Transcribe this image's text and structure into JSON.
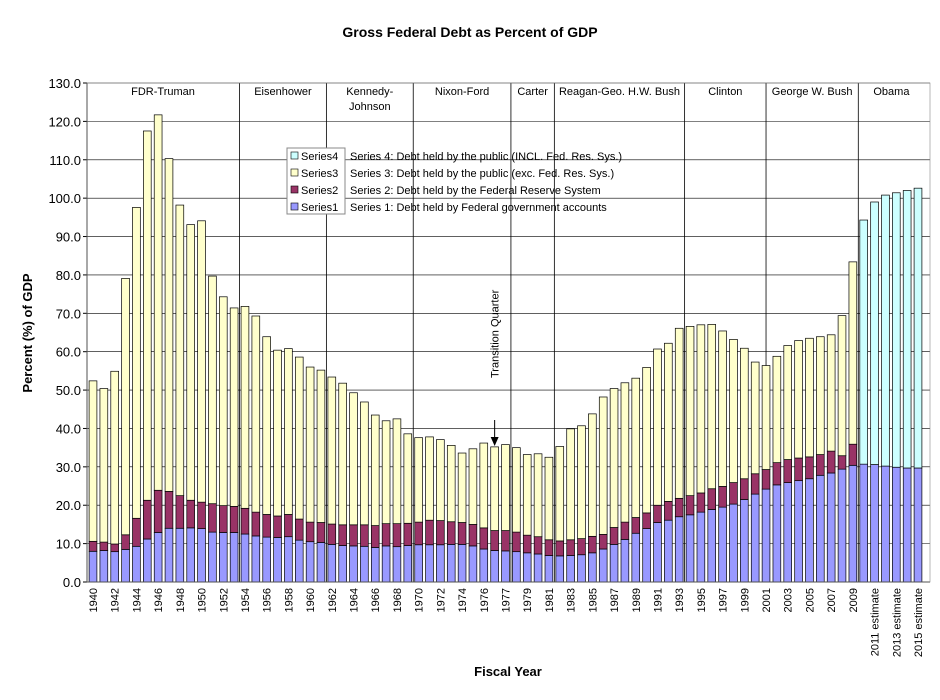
{
  "chart_data": {
    "type": "stacked-bar",
    "title": "Gross Federal Debt as Percent of GDP",
    "x_label": "Fiscal Year",
    "y_label": "Percent (%) of GDP",
    "annotation": "Transition Quarter",
    "eras": [
      [
        "FDR-Truman"
      ],
      [
        "Eisenhower"
      ],
      [
        "Kennedy-",
        "Johnson"
      ],
      [
        "Nixon-Ford"
      ],
      [
        "Carter"
      ],
      [
        "Reagan-Geo. H.W. Bush"
      ],
      [
        "Clinton"
      ],
      [
        "George W. Bush"
      ],
      [
        "Obama"
      ]
    ],
    "categories": [
      "1940",
      null,
      "1942",
      null,
      "1944",
      null,
      "1946",
      null,
      "1948",
      null,
      "1950",
      null,
      "1952",
      null,
      "1954",
      null,
      "1956",
      null,
      "1958",
      null,
      "1960",
      null,
      "1962",
      null,
      "1964",
      null,
      "1966",
      null,
      "1968",
      null,
      "1970",
      null,
      "1972",
      null,
      "1974",
      null,
      "1976",
      null,
      "1977",
      null,
      "1979",
      null,
      "1981",
      null,
      "1983",
      null,
      "1985",
      null,
      "1987",
      null,
      "1989",
      null,
      "1991",
      null,
      "1993",
      null,
      "1995",
      null,
      "1997",
      null,
      "1999",
      null,
      "2001",
      null,
      "2003",
      null,
      "2005",
      null,
      "2007",
      null,
      "2009",
      null,
      "2011 estimate",
      null,
      "2013 estimate",
      null,
      "2015 estimate"
    ],
    "series": [
      {
        "name": "Series1",
        "description": "Series 1: Debt held by Federal government accounts",
        "color": "#9999ff",
        "values": [
          8.0,
          8.2,
          7.9,
          8.5,
          9.3,
          11.2,
          12.9,
          14.0,
          14.0,
          14.1,
          13.9,
          13.0,
          12.9,
          12.9,
          12.5,
          12.0,
          11.7,
          11.6,
          11.8,
          10.9,
          10.5,
          10.3,
          9.8,
          9.5,
          9.4,
          9.3,
          9.0,
          9.4,
          9.2,
          9.5,
          9.7,
          9.7,
          9.7,
          9.8,
          9.8,
          9.4,
          8.6,
          8.2,
          8.1,
          7.9,
          7.6,
          7.3,
          6.9,
          6.8,
          6.9,
          7.1,
          7.6,
          8.6,
          9.8,
          11.1,
          12.7,
          13.9,
          15.5,
          16.1,
          17.0,
          17.5,
          18.2,
          18.9,
          19.5,
          20.3,
          21.5,
          22.9,
          24.2,
          25.3,
          25.9,
          26.4,
          26.9,
          27.8,
          28.4,
          29.4,
          30.4,
          30.7,
          30.6,
          30.2,
          29.9,
          29.7,
          29.7
        ]
      },
      {
        "name": "Series2",
        "description": "Series 2: Debt held by the Federal Reserve System",
        "color": "#993366",
        "values": [
          2.6,
          2.2,
          2.0,
          3.8,
          7.3,
          10.1,
          11.0,
          9.6,
          8.5,
          7.2,
          6.9,
          7.4,
          7.0,
          6.8,
          6.7,
          6.2,
          5.9,
          5.6,
          5.8,
          5.5,
          5.1,
          5.2,
          5.3,
          5.4,
          5.5,
          5.6,
          5.7,
          5.8,
          6.0,
          5.8,
          5.9,
          6.4,
          6.3,
          5.9,
          5.7,
          5.6,
          5.5,
          5.2,
          5.3,
          5.1,
          4.6,
          4.5,
          4.1,
          3.9,
          4.1,
          4.2,
          4.3,
          3.8,
          4.4,
          4.5,
          4.1,
          4.1,
          4.5,
          4.9,
          4.8,
          5.0,
          5.0,
          5.4,
          5.4,
          5.6,
          5.4,
          5.3,
          5.1,
          5.8,
          6.0,
          5.9,
          5.7,
          5.4,
          5.7,
          3.5,
          5.5,
          null,
          null,
          null,
          null,
          null,
          null
        ]
      },
      {
        "name": "Series3",
        "description": "Series 3: Debt held by the public (exc. Fed. Res. Sys.)",
        "color": "#ffffcc",
        "values": [
          41.8,
          40.0,
          45.0,
          66.8,
          81.0,
          96.2,
          97.8,
          86.7,
          75.7,
          71.8,
          73.3,
          59.3,
          54.4,
          51.7,
          52.6,
          51.1,
          46.3,
          43.2,
          43.2,
          42.2,
          40.4,
          39.7,
          38.3,
          36.9,
          34.4,
          32.0,
          28.8,
          26.8,
          27.3,
          23.3,
          22.0,
          21.7,
          21.1,
          19.9,
          18.1,
          19.7,
          22.1,
          21.8,
          22.4,
          22.0,
          21.0,
          21.6,
          21.5,
          24.6,
          28.9,
          29.4,
          31.9,
          35.8,
          36.2,
          36.3,
          36.3,
          37.9,
          40.7,
          41.2,
          44.3,
          44.1,
          43.8,
          42.8,
          40.5,
          37.3,
          34.0,
          29.1,
          27.1,
          27.7,
          29.7,
          30.6,
          30.9,
          30.7,
          30.3,
          36.5,
          47.5,
          null,
          null,
          null,
          null,
          null,
          null
        ]
      },
      {
        "name": "Series4",
        "description": "Series 4: Debt held by the public (INCL. Fed. Res. Sys.)",
        "color": "#ccffff",
        "values": [
          null,
          null,
          null,
          null,
          null,
          null,
          null,
          null,
          null,
          null,
          null,
          null,
          null,
          null,
          null,
          null,
          null,
          null,
          null,
          null,
          null,
          null,
          null,
          null,
          null,
          null,
          null,
          null,
          null,
          null,
          null,
          null,
          null,
          null,
          null,
          null,
          null,
          null,
          null,
          null,
          null,
          null,
          null,
          null,
          null,
          null,
          null,
          null,
          null,
          null,
          null,
          null,
          null,
          null,
          null,
          null,
          null,
          null,
          null,
          null,
          null,
          null,
          null,
          null,
          null,
          null,
          null,
          null,
          null,
          null,
          null,
          63.6,
          68.4,
          70.6,
          71.5,
          72.3,
          72.9
        ]
      }
    ],
    "ylim": [
      0,
      130
    ],
    "yticks": [
      {
        "value": 0,
        "label": "0.0"
      },
      {
        "value": 10,
        "label": "10.0"
      },
      {
        "value": 20,
        "label": "20.0"
      },
      {
        "value": 30,
        "label": "30.0"
      },
      {
        "value": 40,
        "label": "40.0"
      },
      {
        "value": 50,
        "label": "50.0"
      },
      {
        "value": 60,
        "label": "60.0"
      },
      {
        "value": 70,
        "label": "70.0"
      },
      {
        "value": 80,
        "label": "80.0"
      },
      {
        "value": 90,
        "label": "90.0"
      },
      {
        "value": 100,
        "label": "100.0"
      },
      {
        "value": 110,
        "label": "110.0"
      },
      {
        "value": 120,
        "label": "120.0"
      },
      {
        "value": 130,
        "label": "130.0"
      }
    ],
    "grid": true
  }
}
